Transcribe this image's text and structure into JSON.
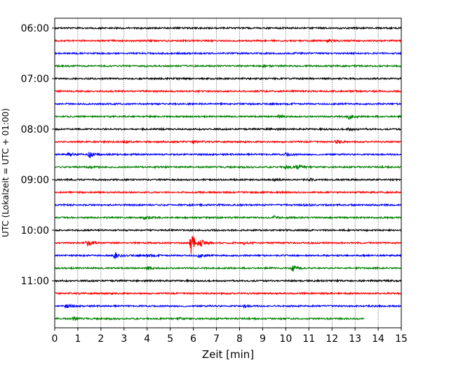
{
  "chart_data": {
    "type": "line",
    "title": "",
    "xlabel": "Zeit  [min]",
    "ylabel": "UTC (Lokalzeit = UTC + 01:00)",
    "xlim": [
      0,
      15
    ],
    "x_ticks": [
      0,
      1,
      2,
      3,
      4,
      5,
      6,
      7,
      8,
      9,
      10,
      11,
      12,
      13,
      14,
      15
    ],
    "x_tick_labels": [
      "0",
      "1",
      "2",
      "3",
      "4",
      "5",
      "6",
      "7",
      "8",
      "9",
      "10",
      "11",
      "12",
      "13",
      "14",
      "15"
    ],
    "y_tick_labels": [
      "06:00",
      "07:00",
      "08:00",
      "09:00",
      "10:00",
      "11:00"
    ],
    "y_tick_hours": [
      6,
      7,
      8,
      9,
      10,
      11
    ],
    "start_hour": 6,
    "minutes_per_row": 15,
    "grid": "vertical-dotted",
    "legend": "none",
    "row_colors": [
      "#000000",
      "#ff0000",
      "#0000ff",
      "#008000"
    ],
    "series": [
      {
        "start": "06:00",
        "end_min": 15,
        "events": []
      },
      {
        "start": "06:15",
        "end_min": 15,
        "events": [
          {
            "t": 11.8,
            "amp": 1.6
          }
        ]
      },
      {
        "start": "06:30",
        "end_min": 15,
        "events": []
      },
      {
        "start": "06:45",
        "end_min": 15,
        "events": [
          {
            "t": 9.0,
            "amp": 1.4
          }
        ]
      },
      {
        "start": "07:00",
        "end_min": 15,
        "events": []
      },
      {
        "start": "07:15",
        "end_min": 15,
        "events": []
      },
      {
        "start": "07:30",
        "end_min": 15,
        "events": []
      },
      {
        "start": "07:45",
        "end_min": 15,
        "events": [
          {
            "t": 9.7,
            "amp": 2.5
          },
          {
            "t": 12.7,
            "amp": 4.5
          }
        ]
      },
      {
        "start": "08:00",
        "end_min": 15,
        "events": [
          {
            "t": 9.2,
            "amp": 1.6
          },
          {
            "t": 12.7,
            "amp": 2.5
          }
        ]
      },
      {
        "start": "08:15",
        "end_min": 15,
        "events": [
          {
            "t": 3.0,
            "amp": 1.5
          },
          {
            "t": 6.0,
            "amp": 2.2
          },
          {
            "t": 12.2,
            "amp": 2.4
          }
        ]
      },
      {
        "start": "08:30",
        "end_min": 15,
        "events": [
          {
            "t": 0.6,
            "amp": 3.0
          },
          {
            "t": 1.5,
            "amp": 4.5
          },
          {
            "t": 10.0,
            "amp": 2.0
          }
        ]
      },
      {
        "start": "08:45",
        "end_min": 15,
        "events": [
          {
            "t": 1.5,
            "amp": 1.8
          },
          {
            "t": 10.0,
            "amp": 4.0
          },
          {
            "t": 10.5,
            "amp": 4.0
          }
        ]
      },
      {
        "start": "09:00",
        "end_min": 15,
        "events": [
          {
            "t": 9.5,
            "amp": 1.5
          },
          {
            "t": 11.0,
            "amp": 1.5
          }
        ]
      },
      {
        "start": "09:15",
        "end_min": 15,
        "events": []
      },
      {
        "start": "09:30",
        "end_min": 15,
        "events": [
          {
            "t": 10.8,
            "amp": 2.0
          }
        ]
      },
      {
        "start": "09:45",
        "end_min": 15,
        "events": [
          {
            "t": 3.9,
            "amp": 3.0
          },
          {
            "t": 9.5,
            "amp": 2.0
          }
        ]
      },
      {
        "start": "10:00",
        "end_min": 15,
        "events": []
      },
      {
        "start": "10:15",
        "end_min": 15,
        "events": [
          {
            "t": 1.4,
            "amp": 5.0
          },
          {
            "t": 5.9,
            "amp": 16.0
          },
          {
            "t": 6.3,
            "amp": 5.0
          },
          {
            "t": 8.2,
            "amp": 2.0
          }
        ]
      },
      {
        "start": "10:30",
        "end_min": 15,
        "events": [
          {
            "t": 2.6,
            "amp": 5.0
          },
          {
            "t": 4.0,
            "amp": 2.0
          },
          {
            "t": 6.2,
            "amp": 3.0
          }
        ]
      },
      {
        "start": "10:45",
        "end_min": 15,
        "events": [
          {
            "t": 4.0,
            "amp": 3.0
          },
          {
            "t": 10.3,
            "amp": 5.0
          }
        ]
      },
      {
        "start": "11:00",
        "end_min": 15,
        "events": []
      },
      {
        "start": "11:15",
        "end_min": 15,
        "events": []
      },
      {
        "start": "11:30",
        "end_min": 15,
        "events": [
          {
            "t": 0.5,
            "amp": 3.0
          },
          {
            "t": 8.2,
            "amp": 1.5
          }
        ]
      },
      {
        "start": "11:45",
        "end_min": 13.4,
        "events": [
          {
            "t": 0.8,
            "amp": 2.0
          },
          {
            "t": 5.4,
            "amp": 1.4
          }
        ]
      }
    ]
  }
}
